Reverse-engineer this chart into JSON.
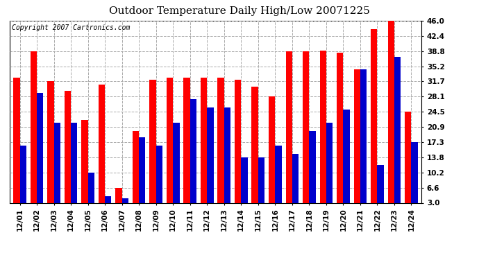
{
  "title": "Outdoor Temperature Daily High/Low 20071225",
  "copyright": "Copyright 2007 Cartronics.com",
  "dates": [
    "12/01",
    "12/02",
    "12/03",
    "12/04",
    "12/05",
    "12/06",
    "12/07",
    "12/08",
    "12/09",
    "12/10",
    "12/11",
    "12/12",
    "12/13",
    "12/14",
    "12/15",
    "12/16",
    "12/17",
    "12/18",
    "12/19",
    "12/20",
    "12/21",
    "12/22",
    "12/23",
    "12/24"
  ],
  "highs": [
    32.5,
    38.8,
    31.7,
    29.5,
    22.5,
    31.0,
    6.6,
    20.0,
    32.0,
    32.5,
    32.5,
    32.5,
    32.5,
    32.0,
    30.5,
    28.1,
    38.8,
    38.8,
    39.0,
    38.5,
    34.5,
    44.0,
    46.0,
    24.5
  ],
  "lows": [
    16.5,
    29.0,
    22.0,
    22.0,
    10.2,
    4.5,
    4.0,
    18.5,
    16.5,
    22.0,
    27.5,
    25.5,
    25.5,
    13.8,
    13.8,
    16.5,
    14.5,
    20.0,
    22.0,
    25.0,
    34.5,
    12.0,
    37.5,
    17.3
  ],
  "high_color": "#ff0000",
  "low_color": "#0000cc",
  "bg_color": "#ffffff",
  "plot_bg_color": "#ffffff",
  "grid_color": "#aaaaaa",
  "ymin": 3.0,
  "ymax": 46.0,
  "yticks": [
    3.0,
    6.6,
    10.2,
    13.8,
    17.3,
    20.9,
    24.5,
    28.1,
    31.7,
    35.2,
    38.8,
    42.4,
    46.0
  ],
  "title_fontsize": 11,
  "copyright_fontsize": 7,
  "tick_fontsize": 7.5,
  "bar_width": 0.38
}
